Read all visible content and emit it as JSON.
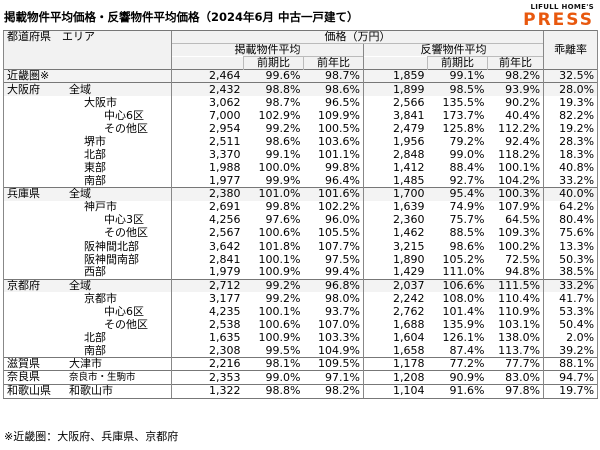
{
  "title": "掲載物件平均価格・反響物件平均価格（2024年6月 中古一戸建て）",
  "logo": {
    "top": "LIFULL HOME'S",
    "main": "PRESS"
  },
  "header": {
    "area": "都道府県　エリア",
    "price": "価格（万円）",
    "listing": "掲載物件平均",
    "response": "反響物件平均",
    "gap": "乖離率",
    "mom": "前期比",
    "yoy": "前年比"
  },
  "rows": [
    {
      "pref": "近畿圏※",
      "area": "",
      "l": "2,464",
      "lm": "99.6%",
      "ly": "98.7%",
      "r": "1,859",
      "rm": "99.1%",
      "ry": "98.2%",
      "gap": "32.5%"
    },
    {
      "pref": "大阪府",
      "area": "全域",
      "l": "2,432",
      "lm": "98.8%",
      "ly": "98.6%",
      "r": "1,899",
      "rm": "98.5%",
      "ry": "93.9%",
      "gap": "28.0%"
    },
    {
      "pref": "",
      "area": "大阪市",
      "l": "3,062",
      "lm": "98.7%",
      "ly": "96.5%",
      "r": "2,566",
      "rm": "135.5%",
      "ry": "90.2%",
      "gap": "19.3%"
    },
    {
      "pref": "",
      "area": "中心6区",
      "l": "7,000",
      "lm": "102.9%",
      "ly": "109.9%",
      "r": "3,841",
      "rm": "173.7%",
      "ry": "40.4%",
      "gap": "82.2%"
    },
    {
      "pref": "",
      "area": "その他区",
      "l": "2,954",
      "lm": "99.2%",
      "ly": "100.5%",
      "r": "2,479",
      "rm": "125.8%",
      "ry": "112.2%",
      "gap": "19.2%"
    },
    {
      "pref": "",
      "area": "堺市",
      "l": "2,511",
      "lm": "98.6%",
      "ly": "103.6%",
      "r": "1,956",
      "rm": "79.2%",
      "ry": "92.4%",
      "gap": "28.3%"
    },
    {
      "pref": "",
      "area": "北部",
      "l": "3,370",
      "lm": "99.1%",
      "ly": "101.1%",
      "r": "2,848",
      "rm": "99.0%",
      "ry": "118.2%",
      "gap": "18.3%"
    },
    {
      "pref": "",
      "area": "東部",
      "l": "1,988",
      "lm": "100.0%",
      "ly": "99.8%",
      "r": "1,412",
      "rm": "88.4%",
      "ry": "100.1%",
      "gap": "40.8%"
    },
    {
      "pref": "",
      "area": "南部",
      "l": "1,977",
      "lm": "99.9%",
      "ly": "96.4%",
      "r": "1,485",
      "rm": "92.7%",
      "ry": "104.2%",
      "gap": "33.2%"
    },
    {
      "pref": "兵庫県",
      "area": "全域",
      "l": "2,380",
      "lm": "101.0%",
      "ly": "101.6%",
      "r": "1,700",
      "rm": "95.4%",
      "ry": "100.3%",
      "gap": "40.0%"
    },
    {
      "pref": "",
      "area": "神戸市",
      "l": "2,691",
      "lm": "99.8%",
      "ly": "102.2%",
      "r": "1,639",
      "rm": "74.9%",
      "ry": "107.9%",
      "gap": "64.2%"
    },
    {
      "pref": "",
      "area": "中心3区",
      "l": "4,256",
      "lm": "97.6%",
      "ly": "96.0%",
      "r": "2,360",
      "rm": "75.7%",
      "ry": "64.5%",
      "gap": "80.4%"
    },
    {
      "pref": "",
      "area": "その他区",
      "l": "2,567",
      "lm": "100.6%",
      "ly": "105.5%",
      "r": "1,462",
      "rm": "88.5%",
      "ry": "109.3%",
      "gap": "75.6%"
    },
    {
      "pref": "",
      "area": "阪神間北部",
      "l": "3,642",
      "lm": "101.8%",
      "ly": "107.7%",
      "r": "3,215",
      "rm": "98.6%",
      "ry": "100.2%",
      "gap": "13.3%"
    },
    {
      "pref": "",
      "area": "阪神間南部",
      "l": "2,841",
      "lm": "100.1%",
      "ly": "97.5%",
      "r": "1,890",
      "rm": "105.2%",
      "ry": "72.5%",
      "gap": "50.3%"
    },
    {
      "pref": "",
      "area": "西部",
      "l": "1,979",
      "lm": "100.9%",
      "ly": "99.4%",
      "r": "1,429",
      "rm": "111.0%",
      "ry": "94.8%",
      "gap": "38.5%"
    },
    {
      "pref": "京都府",
      "area": "全域",
      "l": "2,712",
      "lm": "99.2%",
      "ly": "96.8%",
      "r": "2,037",
      "rm": "106.6%",
      "ry": "111.5%",
      "gap": "33.2%"
    },
    {
      "pref": "",
      "area": "京都市",
      "l": "3,177",
      "lm": "99.2%",
      "ly": "98.0%",
      "r": "2,242",
      "rm": "108.0%",
      "ry": "110.4%",
      "gap": "41.7%"
    },
    {
      "pref": "",
      "area": "中心6区",
      "l": "4,235",
      "lm": "100.1%",
      "ly": "93.7%",
      "r": "2,762",
      "rm": "101.4%",
      "ry": "110.9%",
      "gap": "53.3%"
    },
    {
      "pref": "",
      "area": "その他区",
      "l": "2,538",
      "lm": "100.6%",
      "ly": "107.0%",
      "r": "1,688",
      "rm": "135.9%",
      "ry": "103.1%",
      "gap": "50.4%"
    },
    {
      "pref": "",
      "area": "北部",
      "l": "1,635",
      "lm": "100.9%",
      "ly": "103.3%",
      "r": "1,604",
      "rm": "126.1%",
      "ry": "138.0%",
      "gap": "2.0%"
    },
    {
      "pref": "",
      "area": "南部",
      "l": "2,308",
      "lm": "99.5%",
      "ly": "104.9%",
      "r": "1,658",
      "rm": "87.4%",
      "ry": "113.7%",
      "gap": "39.2%"
    },
    {
      "pref": "滋賀県",
      "area": "大津市",
      "l": "2,216",
      "lm": "98.1%",
      "ly": "109.5%",
      "r": "1,178",
      "rm": "77.2%",
      "ry": "77.7%",
      "gap": "88.1%"
    },
    {
      "pref": "奈良県",
      "area": "奈良市・生駒市",
      "l": "2,353",
      "lm": "99.0%",
      "ly": "97.1%",
      "r": "1,208",
      "rm": "90.9%",
      "ry": "83.0%",
      "gap": "94.7%"
    },
    {
      "pref": "和歌山県",
      "area": "和歌山市",
      "l": "1,322",
      "lm": "98.8%",
      "ly": "98.2%",
      "r": "1,104",
      "rm": "91.6%",
      "ry": "97.8%",
      "gap": "19.7%"
    }
  ],
  "footnote": "※近畿圏：大阪府、兵庫県、京都府"
}
